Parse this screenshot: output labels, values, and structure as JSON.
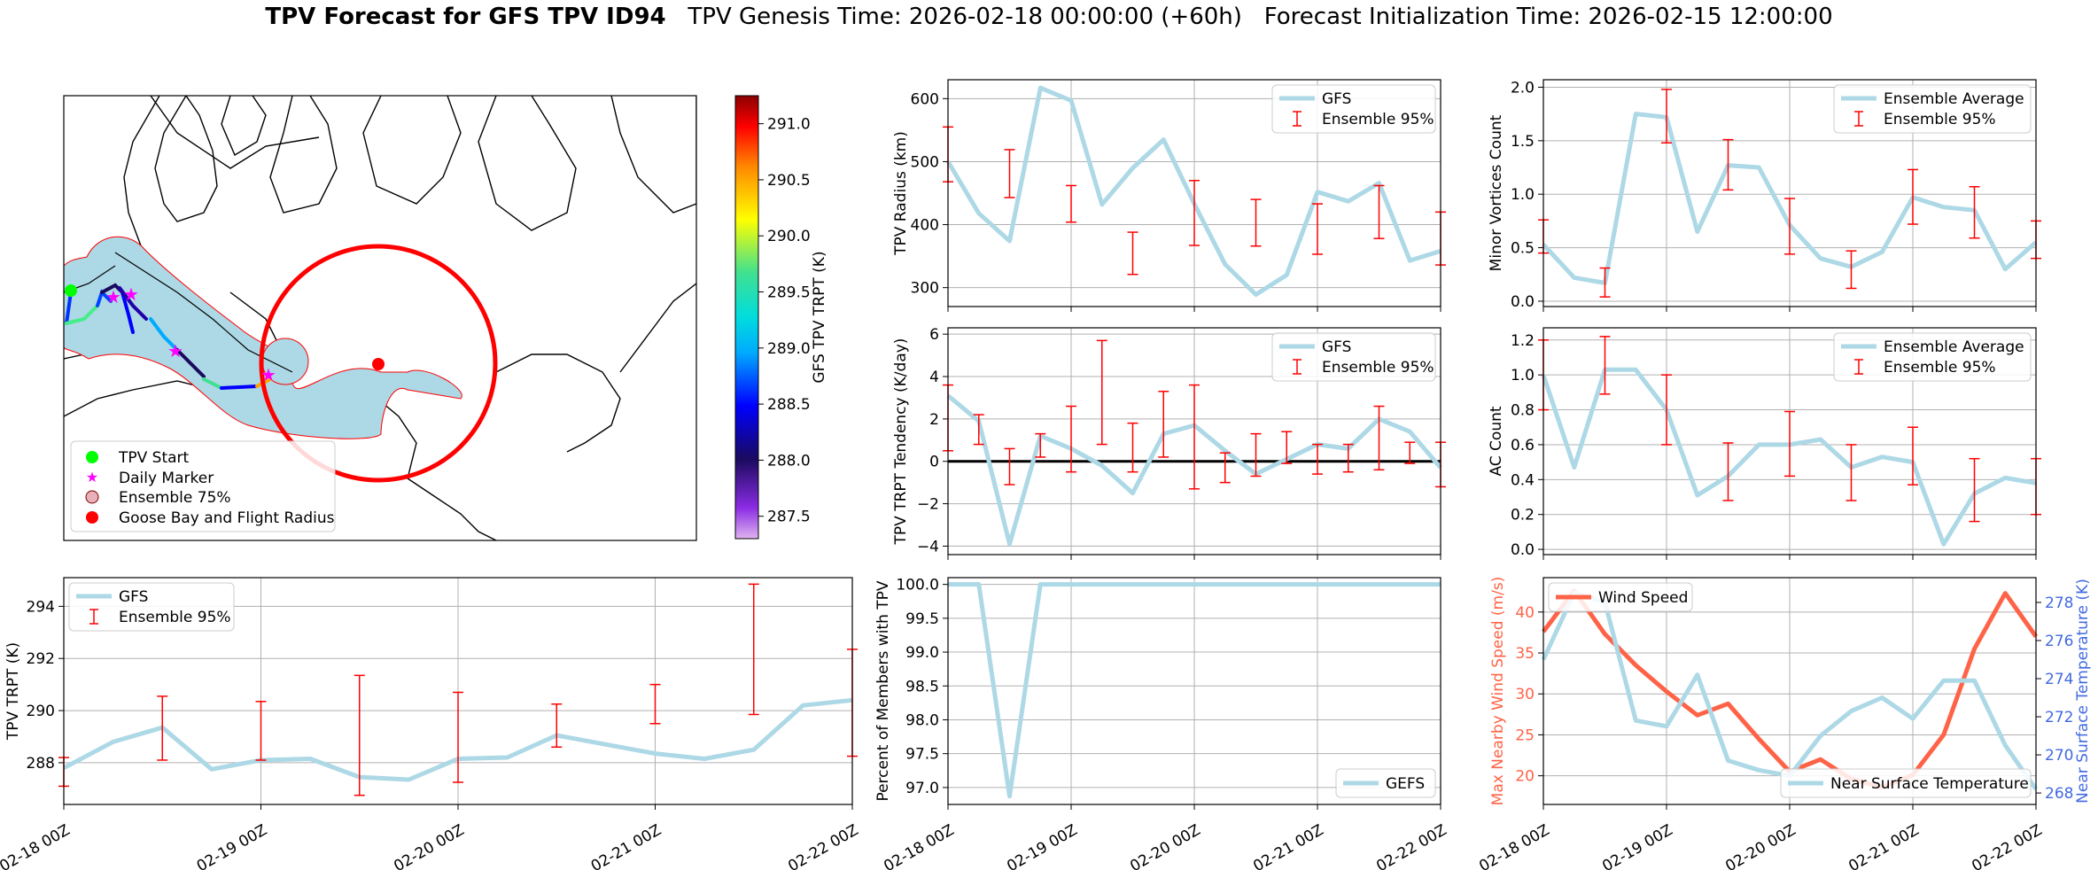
{
  "title": {
    "bold": "TPV Forecast for GFS TPV ID94",
    "genesis": "TPV Genesis Time: 2026-02-18 00:00:00 (+60h)",
    "init": "Forecast Initialization Time: 2026-02-15 12:00:00"
  },
  "colors": {
    "gfs_line": "#add8e6",
    "errorbar": "#ff0000",
    "wind": "#ff6347",
    "temp_axis": "#4169e1",
    "ocean_buffer": "#add8e6",
    "flight_radius": "#ff0000",
    "start_marker": "#00ff00",
    "daily_marker": "#ff00ff"
  },
  "map": {
    "legend": [
      "TPV Start",
      "Daily Marker",
      "Ensemble 75%",
      "Goose Bay and Flight Radius"
    ],
    "colorbar": {
      "label": "GFS TPV TRPT (K)",
      "ticks": [
        "291.0",
        "290.5",
        "290.0",
        "289.5",
        "289.0",
        "288.5",
        "288.0",
        "287.5"
      ],
      "tick_values": [
        291.0,
        290.5,
        290.0,
        289.5,
        289.0,
        288.5,
        288.0,
        287.5
      ],
      "range": [
        287.3,
        291.25
      ]
    }
  },
  "chart_data": [
    {
      "id": "radius",
      "type": "line",
      "ylabel": "TPV Radius (km)",
      "legend": [
        "GFS",
        "Ensemble 95%"
      ],
      "legend_loc": "upper right",
      "ylim": [
        270,
        630
      ],
      "yticks": [
        300,
        400,
        500,
        600
      ],
      "ytick_labels": [
        "300",
        "400",
        "500",
        "600"
      ],
      "x": [
        0,
        0.25,
        0.5,
        0.75,
        1.0,
        1.25,
        1.5,
        1.75,
        2.0,
        2.25,
        2.5,
        2.75,
        3.0,
        3.25,
        3.5,
        3.75,
        4.0
      ],
      "series": [
        {
          "name": "GFS",
          "values": [
            500,
            418,
            374,
            617,
            597,
            432,
            490,
            535,
            433,
            337,
            289,
            320,
            452,
            437,
            466,
            343,
            358
          ]
        }
      ],
      "errorbars": [
        {
          "x": 0.0,
          "lo": 468,
          "hi": 555
        },
        {
          "x": 0.5,
          "lo": 443,
          "hi": 519
        },
        {
          "x": 1.0,
          "lo": 404,
          "hi": 462
        },
        {
          "x": 1.5,
          "lo": 321,
          "hi": 388
        },
        {
          "x": 2.0,
          "lo": 367,
          "hi": 470
        },
        {
          "x": 2.5,
          "lo": 366,
          "hi": 440
        },
        {
          "x": 3.0,
          "lo": 353,
          "hi": 433
        },
        {
          "x": 3.5,
          "lo": 378,
          "hi": 462
        },
        {
          "x": 4.0,
          "lo": 336,
          "hi": 420
        }
      ]
    },
    {
      "id": "minor",
      "type": "line",
      "ylabel": "Minor Vortices Count",
      "legend": [
        "Ensemble Average",
        "Ensemble 95%"
      ],
      "legend_loc": "upper right",
      "ylim": [
        -0.05,
        2.07
      ],
      "yticks": [
        0,
        0.5,
        1.0,
        1.5,
        2.0
      ],
      "ytick_labels": [
        "0.0",
        "0.5",
        "1.0",
        "1.5",
        "2.0"
      ],
      "x": [
        0,
        0.25,
        0.5,
        0.75,
        1.0,
        1.25,
        1.5,
        1.75,
        2.0,
        2.25,
        2.5,
        2.75,
        3.0,
        3.25,
        3.5,
        3.75,
        4.0
      ],
      "series": [
        {
          "name": "Ensemble Average",
          "values": [
            0.53,
            0.22,
            0.17,
            1.75,
            1.72,
            0.65,
            1.27,
            1.25,
            0.71,
            0.4,
            0.32,
            0.46,
            0.97,
            0.88,
            0.85,
            0.3,
            0.55
          ]
        }
      ],
      "errorbars": [
        {
          "x": 0.0,
          "lo": 0.45,
          "hi": 0.76
        },
        {
          "x": 0.5,
          "lo": 0.04,
          "hi": 0.31
        },
        {
          "x": 1.0,
          "lo": 1.48,
          "hi": 1.98
        },
        {
          "x": 1.5,
          "lo": 1.04,
          "hi": 1.51
        },
        {
          "x": 2.0,
          "lo": 0.44,
          "hi": 0.96
        },
        {
          "x": 2.5,
          "lo": 0.12,
          "hi": 0.47
        },
        {
          "x": 3.0,
          "lo": 0.72,
          "hi": 1.23
        },
        {
          "x": 3.5,
          "lo": 0.59,
          "hi": 1.07
        },
        {
          "x": 4.0,
          "lo": 0.4,
          "hi": 0.75
        }
      ]
    },
    {
      "id": "tendency",
      "type": "line",
      "ylabel": "TPV TRPT Tendency (K/day)",
      "legend": [
        "GFS",
        "Ensemble 95%"
      ],
      "legend_loc": "upper right",
      "ylim": [
        -4.4,
        6.3
      ],
      "yticks": [
        -4,
        -2,
        0,
        2,
        4,
        6
      ],
      "ytick_labels": [
        "−4",
        "−2",
        "0",
        "2",
        "4",
        "6"
      ],
      "hline": 0,
      "x": [
        0,
        0.25,
        0.5,
        0.75,
        1.0,
        1.25,
        1.5,
        1.75,
        2.0,
        2.25,
        2.5,
        2.75,
        3.0,
        3.25,
        3.5,
        3.75,
        4.0
      ],
      "series": [
        {
          "name": "GFS",
          "values": [
            3.1,
            1.9,
            -3.9,
            1.2,
            0.6,
            -0.2,
            -1.5,
            1.3,
            1.7,
            0.5,
            -0.6,
            0.1,
            0.8,
            0.6,
            2.0,
            1.4,
            -0.3
          ]
        }
      ],
      "errorbars": [
        {
          "x": 0.0,
          "lo": 0.5,
          "hi": 3.6
        },
        {
          "x": 0.25,
          "lo": 0.8,
          "hi": 2.2
        },
        {
          "x": 0.5,
          "lo": -1.1,
          "hi": 0.6
        },
        {
          "x": 0.75,
          "lo": 0.2,
          "hi": 1.3
        },
        {
          "x": 1.0,
          "lo": -0.5,
          "hi": 2.6
        },
        {
          "x": 1.25,
          "lo": 0.8,
          "hi": 5.7
        },
        {
          "x": 1.5,
          "lo": -0.5,
          "hi": 1.8
        },
        {
          "x": 1.75,
          "lo": 0.2,
          "hi": 3.3
        },
        {
          "x": 2.0,
          "lo": -1.3,
          "hi": 3.6
        },
        {
          "x": 2.25,
          "lo": -1.0,
          "hi": 0.4
        },
        {
          "x": 2.5,
          "lo": -0.7,
          "hi": 1.3
        },
        {
          "x": 2.75,
          "lo": -0.1,
          "hi": 1.4
        },
        {
          "x": 3.0,
          "lo": -0.6,
          "hi": 0.8
        },
        {
          "x": 3.25,
          "lo": -0.5,
          "hi": 0.8
        },
        {
          "x": 3.5,
          "lo": -0.4,
          "hi": 2.6
        },
        {
          "x": 3.75,
          "lo": -0.1,
          "hi": 0.9
        },
        {
          "x": 4.0,
          "lo": -1.2,
          "hi": 0.9
        }
      ]
    },
    {
      "id": "ac",
      "type": "line",
      "ylabel": "AC Count",
      "legend": [
        "Ensemble Average",
        "Ensemble 95%"
      ],
      "legend_loc": "upper right",
      "ylim": [
        -0.03,
        1.27
      ],
      "yticks": [
        0,
        0.2,
        0.4,
        0.6,
        0.8,
        1.0,
        1.2
      ],
      "ytick_labels": [
        "0.0",
        "0.2",
        "0.4",
        "0.6",
        "0.8",
        "1.0",
        "1.2"
      ],
      "x": [
        0,
        0.25,
        0.5,
        0.75,
        1.0,
        1.25,
        1.5,
        1.75,
        2.0,
        2.25,
        2.5,
        2.75,
        3.0,
        3.25,
        3.5,
        3.75,
        4.0
      ],
      "series": [
        {
          "name": "Ensemble Average",
          "values": [
            1.0,
            0.47,
            1.03,
            1.03,
            0.8,
            0.31,
            0.42,
            0.6,
            0.6,
            0.63,
            0.47,
            0.53,
            0.5,
            0.03,
            0.32,
            0.41,
            0.38
          ]
        }
      ],
      "errorbars": [
        {
          "x": 0.0,
          "lo": 0.8,
          "hi": 1.2
        },
        {
          "x": 0.5,
          "lo": 0.89,
          "hi": 1.22
        },
        {
          "x": 1.0,
          "lo": 0.6,
          "hi": 1.0
        },
        {
          "x": 1.5,
          "lo": 0.28,
          "hi": 0.61
        },
        {
          "x": 2.0,
          "lo": 0.42,
          "hi": 0.79
        },
        {
          "x": 2.5,
          "lo": 0.28,
          "hi": 0.6
        },
        {
          "x": 3.0,
          "lo": 0.37,
          "hi": 0.7
        },
        {
          "x": 3.5,
          "lo": 0.16,
          "hi": 0.52
        },
        {
          "x": 4.0,
          "lo": 0.2,
          "hi": 0.52
        }
      ]
    },
    {
      "id": "trpt",
      "type": "line",
      "ylabel": "TPV TRPT (K)",
      "legend": [
        "GFS",
        "Ensemble 95%"
      ],
      "legend_loc": "upper left",
      "ylim": [
        286.4,
        295.1
      ],
      "yticks": [
        288,
        290,
        292,
        294
      ],
      "ytick_labels": [
        "288",
        "290",
        "292",
        "294"
      ],
      "x": [
        0,
        0.25,
        0.5,
        0.75,
        1.0,
        1.25,
        1.5,
        1.75,
        2.0,
        2.25,
        2.5,
        2.75,
        3.0,
        3.25,
        3.5,
        3.75,
        4.0
      ],
      "series": [
        {
          "name": "GFS",
          "values": [
            287.8,
            288.8,
            289.35,
            287.75,
            288.1,
            288.15,
            287.45,
            287.35,
            288.15,
            288.2,
            289.05,
            288.7,
            288.35,
            288.15,
            288.5,
            290.2,
            290.4
          ]
        }
      ],
      "errorbars": [
        {
          "x": 0.0,
          "lo": 287.1,
          "hi": 288.2
        },
        {
          "x": 0.5,
          "lo": 288.1,
          "hi": 290.55
        },
        {
          "x": 1.0,
          "lo": 288.1,
          "hi": 290.35
        },
        {
          "x": 1.5,
          "lo": 286.75,
          "hi": 291.35
        },
        {
          "x": 2.0,
          "lo": 287.25,
          "hi": 290.7
        },
        {
          "x": 2.5,
          "lo": 288.6,
          "hi": 290.25
        },
        {
          "x": 3.0,
          "lo": 289.5,
          "hi": 291.0
        },
        {
          "x": 3.5,
          "lo": 289.85,
          "hi": 294.85
        },
        {
          "x": 4.0,
          "lo": 288.25,
          "hi": 292.35
        }
      ]
    },
    {
      "id": "percent",
      "type": "line",
      "ylabel": "Percent of Members with TPV",
      "legend": [
        "GEFS"
      ],
      "legend_loc": "lower right",
      "ylim": [
        96.75,
        100.1
      ],
      "yticks": [
        97.0,
        97.5,
        98.0,
        98.5,
        99.0,
        99.5,
        100.0
      ],
      "ytick_labels": [
        "97.0",
        "97.5",
        "98.0",
        "98.5",
        "99.0",
        "99.5",
        "100.0"
      ],
      "x": [
        0,
        0.25,
        0.5,
        0.75,
        1.0,
        1.25,
        1.5,
        1.75,
        2.0,
        2.25,
        2.5,
        2.75,
        3.0,
        3.25,
        3.5,
        3.75,
        4.0
      ],
      "series": [
        {
          "name": "GEFS",
          "values": [
            100,
            100,
            96.87,
            100,
            100,
            100,
            100,
            100,
            100,
            100,
            100,
            100,
            100,
            100,
            100,
            100,
            100
          ]
        }
      ]
    },
    {
      "id": "wind_temp",
      "type": "line",
      "ylabel": "Max Nearby Wind Speed (m/s)",
      "ylabel2": "Near Surface Temperature (K)",
      "legend": [
        "Wind Speed"
      ],
      "legend2": [
        "Near Surface Temperature"
      ],
      "ylim": [
        16.5,
        44.2
      ],
      "yticks": [
        20,
        25,
        30,
        35,
        40
      ],
      "ytick_labels": [
        "20",
        "25",
        "30",
        "35",
        "40"
      ],
      "ylim2": [
        267.4,
        279.3
      ],
      "yticks2": [
        268,
        270,
        272,
        274,
        276,
        278
      ],
      "ytick_labels2": [
        "268",
        "270",
        "272",
        "274",
        "276",
        "278"
      ],
      "x": [
        0,
        0.25,
        0.5,
        0.75,
        1.0,
        1.25,
        1.5,
        1.75,
        2.0,
        2.25,
        2.5,
        2.75,
        3.0,
        3.25,
        3.5,
        3.75,
        4.0
      ],
      "series": [
        {
          "name": "Wind Speed",
          "axis": "left",
          "values": [
            37.6,
            42.6,
            37.3,
            33.5,
            30.3,
            27.4,
            28.8,
            24.5,
            20.5,
            22.0,
            19.6,
            18.6,
            20.1,
            25.0,
            35.5,
            42.3,
            37.0
          ]
        },
        {
          "name": "Near Surface Temperature",
          "axis": "right",
          "values": [
            275.0,
            278.5,
            278.0,
            271.8,
            271.5,
            274.2,
            269.7,
            269.2,
            268.9,
            271.0,
            272.3,
            273.0,
            271.9,
            273.9,
            273.9,
            270.5,
            268.2
          ]
        }
      ]
    }
  ],
  "xticks": [
    "02-18 00Z",
    "02-19 00Z",
    "02-20 00Z",
    "02-21 00Z",
    "02-22 00Z"
  ]
}
